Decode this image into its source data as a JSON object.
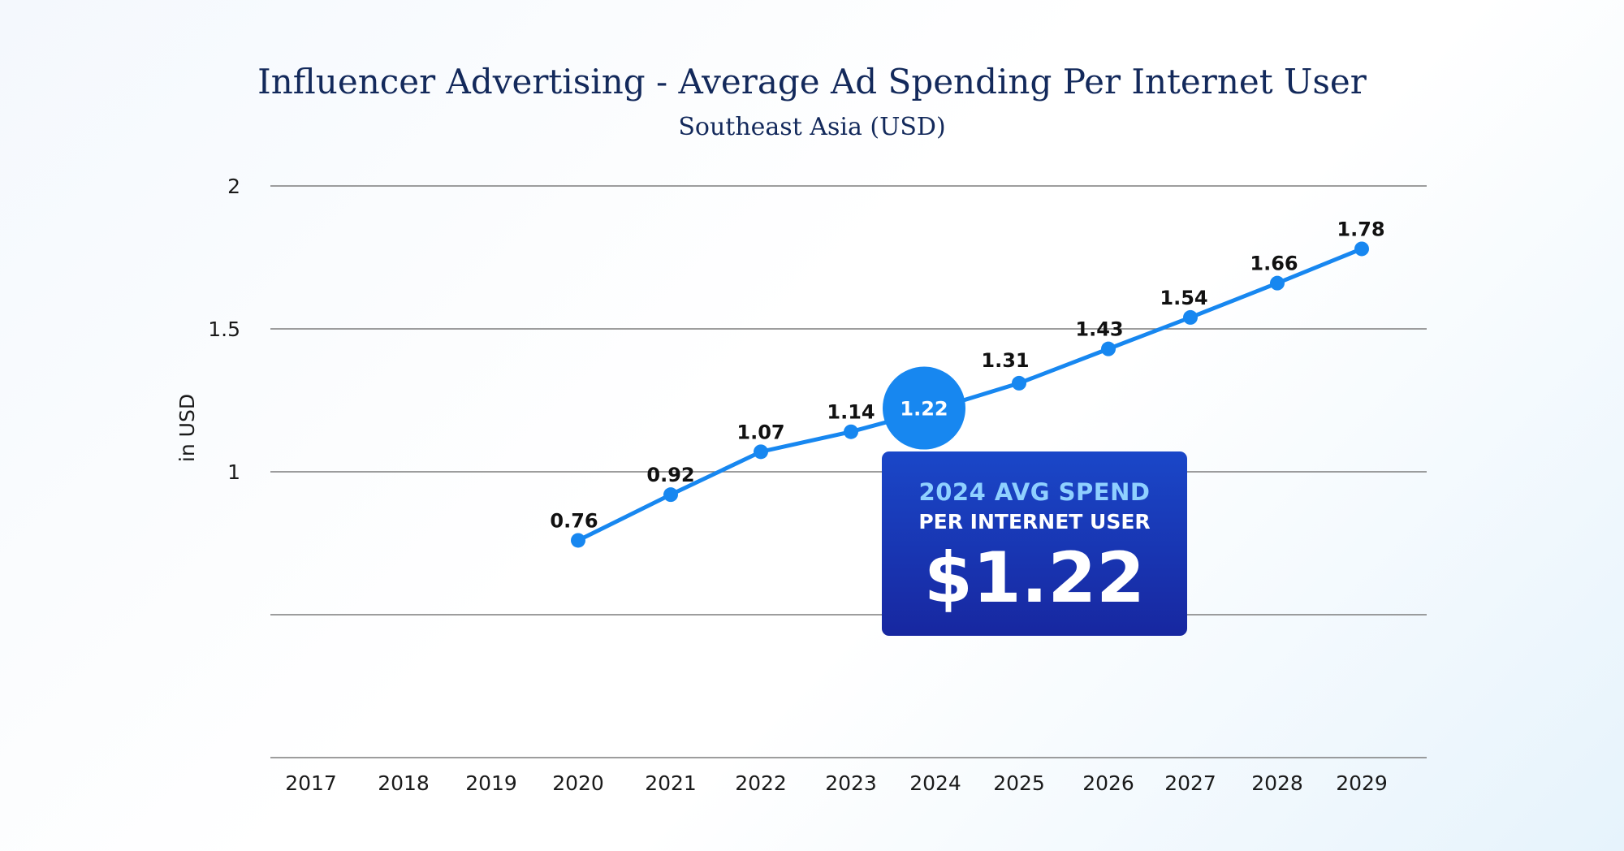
{
  "header": {
    "title": "Influencer Advertising - Average Ad Spending Per Internet User",
    "subtitle": "Southeast Asia (USD)"
  },
  "colors": {
    "series": "#1787f0",
    "title": "#13295b",
    "callout_top": "#1a47c8",
    "callout_bottom": "#1727a0",
    "callout_accent": "#8fd0ff"
  },
  "callout": {
    "line1": "2024 AVG SPEND",
    "line2": "PER INTERNET USER",
    "value": "$1.22"
  },
  "chart_data": {
    "type": "line",
    "title": "Influencer Advertising - Average Ad Spending Per Internet User",
    "subtitle": "Southeast Asia (USD)",
    "xlabel": "",
    "ylabel": "in USD",
    "categories": [
      "2017",
      "2018",
      "2019",
      "2020",
      "2021",
      "2022",
      "2023",
      "2024",
      "2025",
      "2026",
      "2027",
      "2028",
      "2029"
    ],
    "series": [
      {
        "values": [
          null,
          null,
          null,
          0.76,
          0.92,
          1.07,
          1.14,
          1.22,
          1.31,
          1.43,
          1.54,
          1.66,
          1.78
        ],
        "labels": [
          "",
          "",
          "",
          "0.76",
          "0.92",
          "1.07",
          "1.14",
          "1.22",
          "1.31",
          "1.43",
          "1.54",
          "1.66",
          "1.78"
        ]
      }
    ],
    "yticks": [
      1,
      1.5,
      2
    ],
    "ytick_labels": [
      "1",
      "1.5",
      "2"
    ],
    "grid_values": [
      0,
      0.5,
      1,
      1.5,
      2
    ],
    "ylim": [
      0,
      2
    ],
    "grid": true,
    "highlight": {
      "category": "2024",
      "value": 1.22,
      "label": "1.22"
    }
  }
}
